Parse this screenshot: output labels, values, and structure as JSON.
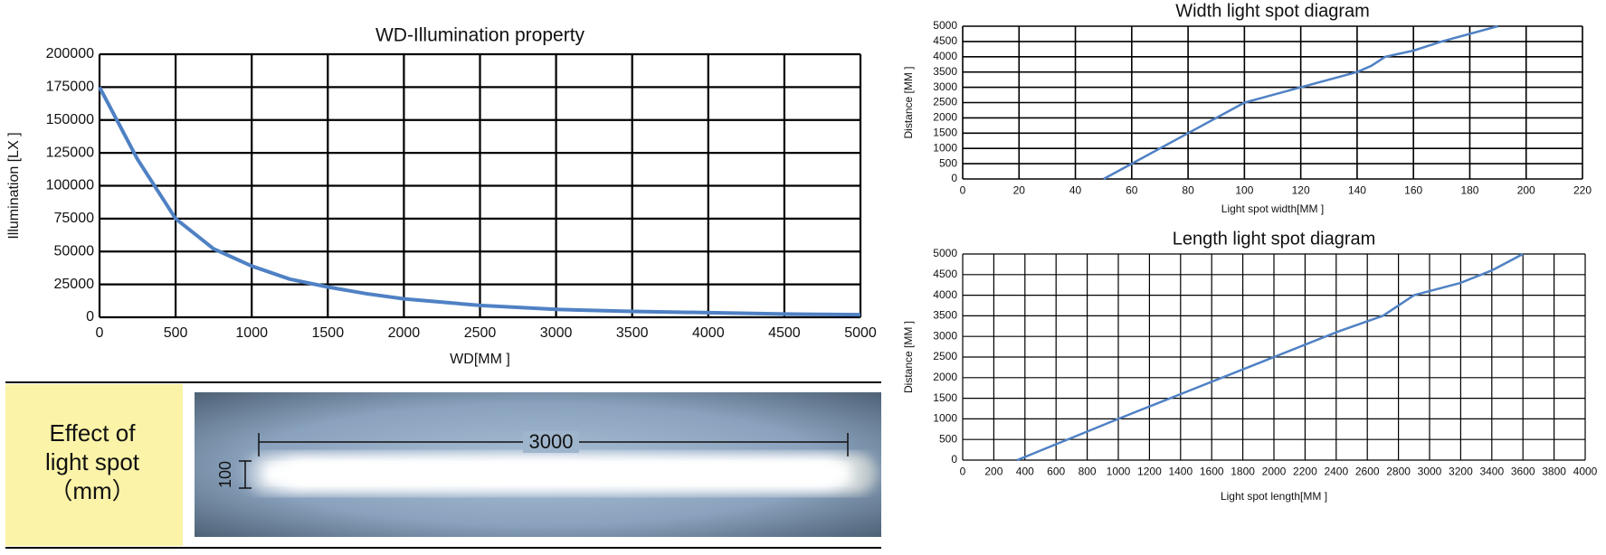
{
  "chart_data": [
    {
      "type": "line",
      "title": "WD-Illumination property",
      "x_label": "WD[MM ]",
      "y_label": "Illumination [LX ]",
      "x": [
        0,
        250,
        500,
        750,
        1000,
        1250,
        1500,
        1750,
        2000,
        2500,
        3000,
        3500,
        4000,
        4500,
        5000
      ],
      "series": [
        {
          "name": "Illumination",
          "color": "#4f81c4",
          "values": [
            175000,
            120000,
            75000,
            52000,
            39000,
            29000,
            23000,
            18000,
            14000,
            9000,
            6000,
            4500,
            3500,
            2500,
            2000
          ]
        }
      ],
      "xlim": [
        0,
        5000
      ],
      "xticks": [
        0,
        500,
        1000,
        1500,
        2000,
        2500,
        3000,
        3500,
        4000,
        4500,
        5000
      ],
      "ylim": [
        0,
        200000
      ],
      "yticks": [
        0,
        25000,
        50000,
        75000,
        100000,
        125000,
        150000,
        175000,
        200000
      ],
      "grid": true
    },
    {
      "type": "line",
      "title": "Width light spot diagram",
      "x_label": "Light spot width[MM ]",
      "y_label": "Distance [MM ]",
      "x": [
        50,
        60,
        80,
        95,
        100,
        120,
        140,
        145,
        150,
        160,
        170,
        190
      ],
      "series": [
        {
          "name": "Width",
          "color": "#4f81c4",
          "values": [
            0,
            500,
            1500,
            2250,
            2500,
            3000,
            3500,
            3700,
            4000,
            4200,
            4500,
            5000
          ]
        }
      ],
      "xlim": [
        0,
        220
      ],
      "xticks": [
        0,
        20,
        40,
        60,
        80,
        100,
        120,
        140,
        160,
        180,
        200,
        220
      ],
      "ylim": [
        0,
        5000
      ],
      "yticks": [
        0,
        500,
        1000,
        1500,
        2000,
        2500,
        3000,
        3500,
        4000,
        4500,
        5000
      ],
      "grid": true
    },
    {
      "type": "line",
      "title": "Length light spot diagram",
      "x_label": "Light spot length[MM ]",
      "y_label": "Distance [MM ]",
      "x": [
        350,
        1000,
        1400,
        2000,
        2200,
        2400,
        2700,
        2900,
        3200,
        3400,
        3600
      ],
      "series": [
        {
          "name": "Length",
          "color": "#4f81c4",
          "values": [
            0,
            1000,
            1600,
            2500,
            2800,
            3100,
            3500,
            4000,
            4300,
            4600,
            5000
          ]
        }
      ],
      "xlim": [
        0,
        4000
      ],
      "xticks": [
        0,
        200,
        400,
        600,
        800,
        1000,
        1200,
        1400,
        1600,
        1800,
        2000,
        2200,
        2400,
        2600,
        2800,
        3000,
        3200,
        3400,
        3600,
        3800,
        4000
      ],
      "ylim": [
        0,
        5000
      ],
      "yticks": [
        0,
        500,
        1000,
        1500,
        2000,
        2500,
        3000,
        3500,
        4000,
        4500,
        5000
      ],
      "grid": true
    }
  ],
  "spot_panel": {
    "caption": [
      "Effect of",
      "light spot",
      "（mm）"
    ],
    "length_label": "3000",
    "width_label": "100"
  }
}
